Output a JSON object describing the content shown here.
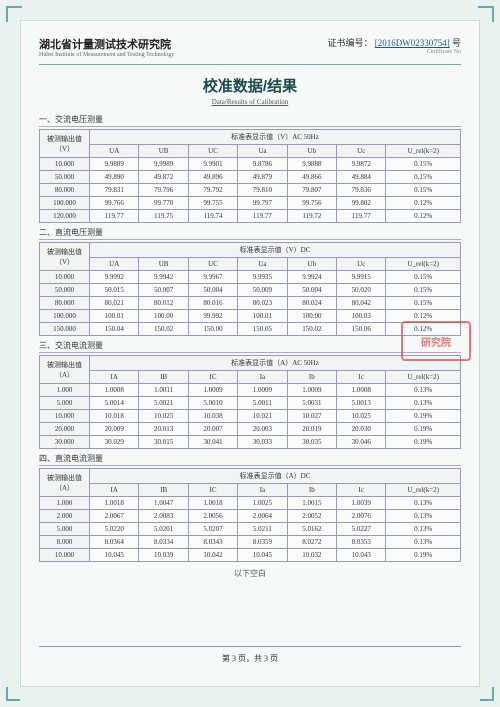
{
  "header": {
    "org_cn": "湖北省计量测试技术研究院",
    "org_en": "Hubei Institute of Measurement and Testing Technology",
    "cert_label": "证书编号：",
    "cert_no": "[2016DW02330754]",
    "cert_suffix": "号",
    "cert_sub": "Certificate No"
  },
  "title_cn": "校准数据/结果",
  "title_en": "Data/Results of Calibration",
  "sections": [
    {
      "label": "一、交流电压测量",
      "row_header": "被测输出值（V）",
      "group_header": "标准表显示值（V）AC 50Hz",
      "cols": [
        "UA",
        "UB",
        "UC",
        "Ua",
        "Ub",
        "Uc",
        "U_rel(k=2)"
      ],
      "rows": [
        [
          "10.000",
          "9.9889",
          "9.9989",
          "9.9901",
          "9.8786",
          "9.9888",
          "9.9872",
          "0.15%"
        ],
        [
          "50.000",
          "49.890",
          "49.872",
          "49.896",
          "49.879",
          "49.866",
          "49.884",
          "0.15%"
        ],
        [
          "80.000",
          "79.831",
          "79.796",
          "79.792",
          "79.810",
          "79.807",
          "79.836",
          "0.15%"
        ],
        [
          "100.000",
          "99.766",
          "99.770",
          "99.755",
          "99.797",
          "99.756",
          "99.802",
          "0.12%"
        ],
        [
          "120.000",
          "119.77",
          "119.75",
          "119.74",
          "119.77",
          "119.72",
          "119.77",
          "0.12%"
        ]
      ]
    },
    {
      "label": "二、直流电压测量",
      "row_header": "被测输出值（V）",
      "group_header": "标准表显示值（V）DC",
      "cols": [
        "UA",
        "UB",
        "UC",
        "Ua",
        "Ub",
        "Uc",
        "U_rel(k=2)"
      ],
      "rows": [
        [
          "10.000",
          "9.9992",
          "9.9942",
          "9.9967",
          "9.9935",
          "9.9924",
          "9.9915",
          "0.15%"
        ],
        [
          "50.000",
          "50.015",
          "50.007",
          "50.004",
          "50.009",
          "50.004",
          "50.020",
          "0.15%"
        ],
        [
          "80.000",
          "80.021",
          "80.012",
          "80.016",
          "80.023",
          "80.024",
          "80.042",
          "0.15%"
        ],
        [
          "100.000",
          "100.01",
          "100.00",
          "99.992",
          "100.01",
          "100.00",
          "100.03",
          "0.12%"
        ],
        [
          "150.000",
          "150.04",
          "150.02",
          "150.00",
          "150.05",
          "150.02",
          "150.06",
          "0.12%"
        ]
      ]
    },
    {
      "label": "三、交流电流测量",
      "row_header": "被测输出值（A）",
      "group_header": "标准表显示值（A）AC 50Hz",
      "cols": [
        "IA",
        "IB",
        "IC",
        "Ia",
        "Ib",
        "Ic",
        "U_rel(k=2)"
      ],
      "rows": [
        [
          "1.000",
          "1.0008",
          "1.0011",
          "1.0009",
          "1.0009",
          "1.0009",
          "1.0008",
          "0.13%"
        ],
        [
          "5.000",
          "5.0014",
          "5.0021",
          "5.0010",
          "5.0011",
          "5.0031",
          "5.0013",
          "0.13%"
        ],
        [
          "10.000",
          "10.018",
          "10.025",
          "10.038",
          "10.021",
          "10.027",
          "10.025",
          "0.19%"
        ],
        [
          "20.000",
          "20.009",
          "20.013",
          "20.007",
          "20.003",
          "20.019",
          "20.030",
          "0.19%"
        ],
        [
          "30.000",
          "30.029",
          "30.015",
          "30.041",
          "30.033",
          "30.035",
          "30.046",
          "0.19%"
        ]
      ]
    },
    {
      "label": "四、直流电流测量",
      "row_header": "被测输出值（A）",
      "group_header": "标准表显示值（A）DC",
      "cols": [
        "IA",
        "IB",
        "IC",
        "Ia",
        "Ib",
        "Ic",
        "U_rel(k=2)"
      ],
      "rows": [
        [
          "1.000",
          "1.0018",
          "1.0047",
          "1.0018",
          "1.0025",
          "1.0015",
          "1.0039",
          "0.13%"
        ],
        [
          "2.000",
          "2.0067",
          "2.0083",
          "2.0056",
          "2.0064",
          "2.0052",
          "2.0076",
          "0.13%"
        ],
        [
          "5.000",
          "5.0220",
          "5.0201",
          "5.0207",
          "5.0211",
          "5.0162",
          "5.0227",
          "0.13%"
        ],
        [
          "8.000",
          "8.0364",
          "8.0334",
          "8.0343",
          "8.0359",
          "8.0272",
          "8.0353",
          "0.13%"
        ],
        [
          "10.000",
          "10.045",
          "10.039",
          "10.042",
          "10.045",
          "10.032",
          "10.043",
          "0.19%"
        ]
      ]
    }
  ],
  "blank_below": "以下空白",
  "footer": "第 3 页，共 3 页",
  "stamp": "研究院",
  "colors": {
    "page_bg": "#e8f2f0",
    "sheet_bg": "#f5f9f7",
    "border": "#99b",
    "accent": "#7aa",
    "stamp": "#d44"
  }
}
